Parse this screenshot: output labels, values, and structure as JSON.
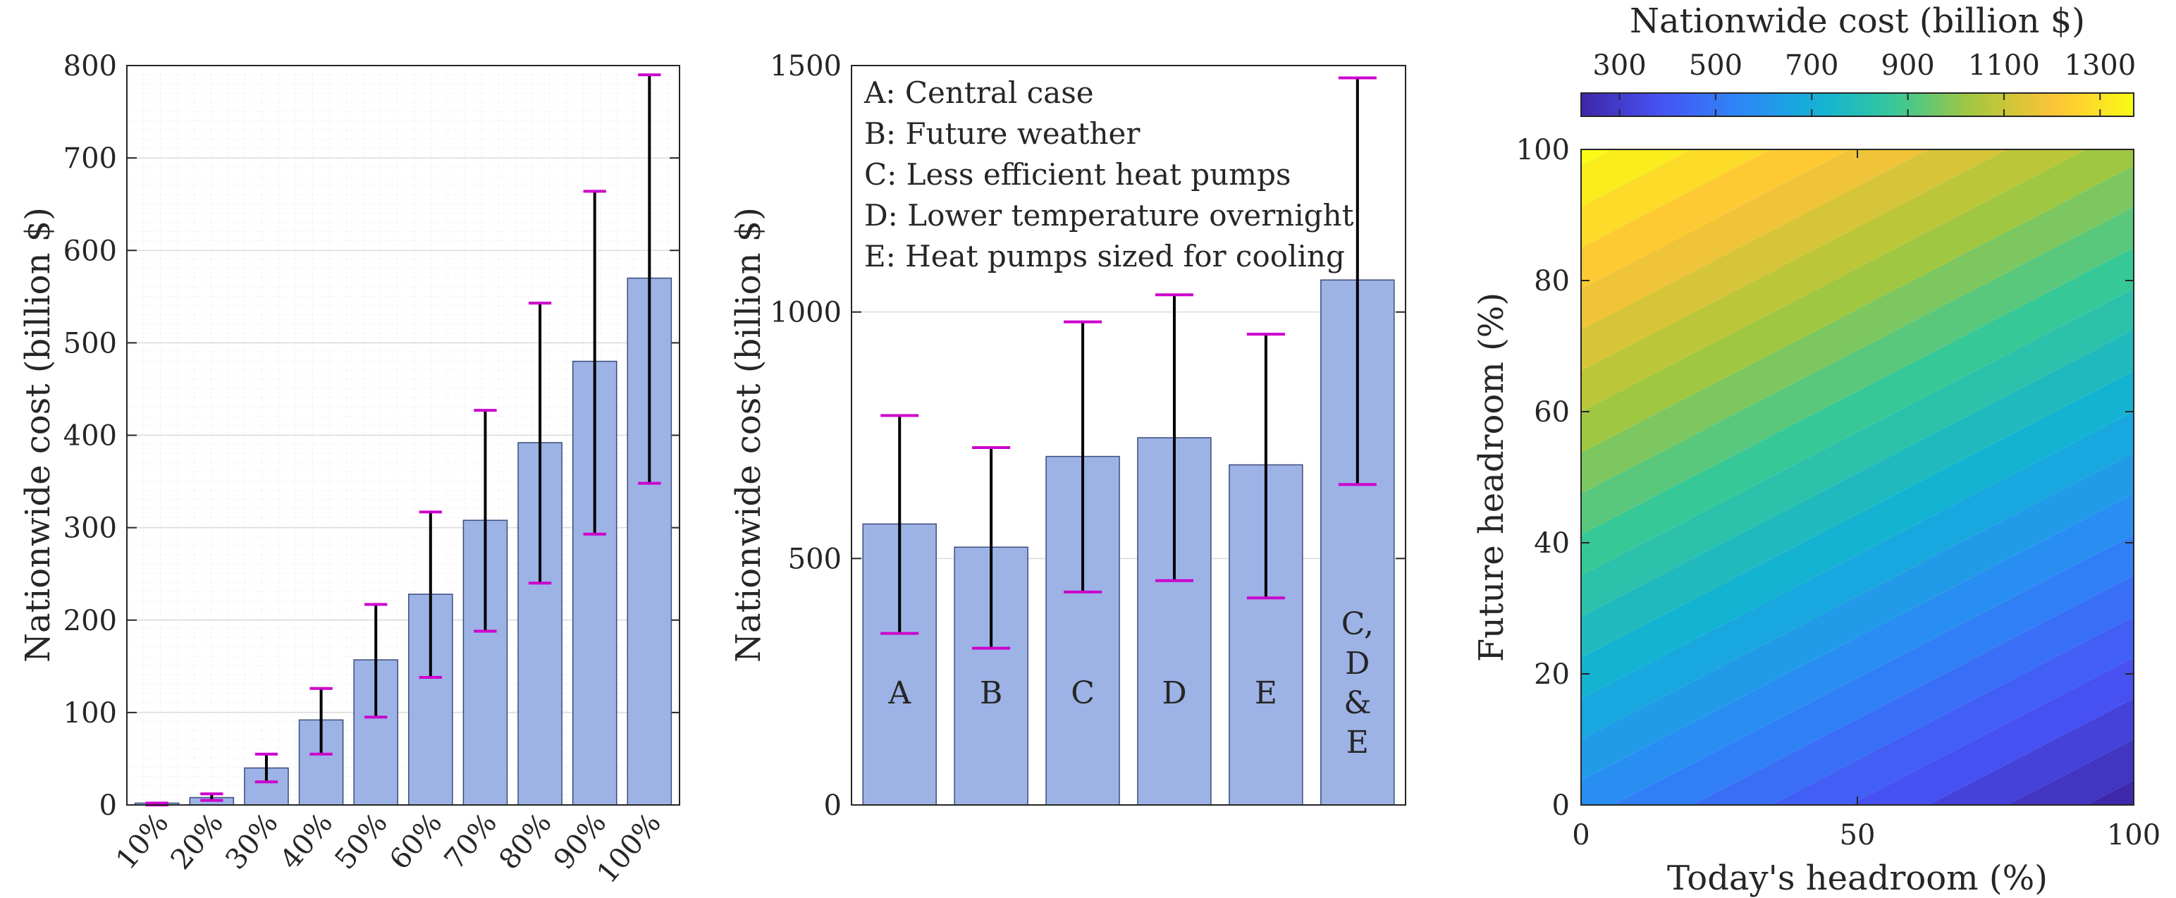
{
  "chart_data": [
    {
      "type": "bar",
      "categories": [
        "10%",
        "20%",
        "30%",
        "40%",
        "50%",
        "60%",
        "70%",
        "80%",
        "90%",
        "100%"
      ],
      "values": [
        2,
        8,
        40,
        92,
        157,
        228,
        308,
        392,
        480,
        570
      ],
      "error_low": [
        0,
        5,
        25,
        55,
        95,
        138,
        188,
        240,
        293,
        348
      ],
      "error_high": [
        2,
        12,
        55,
        126,
        217,
        317,
        427,
        543,
        664,
        790
      ],
      "xlabel": "",
      "ylabel": "Nationwide cost (billion $)",
      "ylim": [
        0,
        800
      ],
      "yticks": [
        0,
        100,
        200,
        300,
        400,
        500,
        600,
        700,
        800
      ],
      "grid": "on (major and minor)",
      "bar_color": "#9db3e6",
      "error_color": "#000000",
      "error_cap_color": "#cc00cc"
    },
    {
      "type": "bar",
      "categories": [
        "A",
        "B",
        "C",
        "D",
        "E",
        "C,\nD\n&\nE"
      ],
      "bar_labels": [
        [
          "A"
        ],
        [
          "B"
        ],
        [
          "C"
        ],
        [
          "D"
        ],
        [
          "E"
        ],
        [
          "C,",
          "D",
          "&",
          "E"
        ]
      ],
      "values": [
        570,
        523,
        707,
        745,
        690,
        1065
      ],
      "error_low": [
        348,
        318,
        432,
        455,
        420,
        650
      ],
      "error_high": [
        790,
        725,
        980,
        1035,
        955,
        1475
      ],
      "ylabel": "Nationwide cost (billion $)",
      "ylim": [
        0,
        1500
      ],
      "yticks": [
        0,
        500,
        1000,
        1500
      ],
      "grid": "on (major and minor)",
      "legend": [
        "A: Central case",
        "B: Future weather",
        "C: Less efficient heat pumps",
        "D: Lower temperature overnight",
        "E: Heat pumps sized for cooling"
      ],
      "legend_position": "top-left",
      "bar_color": "#9db3e6",
      "error_color": "#000000",
      "error_cap_color": "#cc00cc"
    },
    {
      "type": "heatmap",
      "subtype": "filled contour",
      "xlabel": "Today's headroom (%)",
      "ylabel": "Future headroom (%)",
      "xlim": [
        0,
        100
      ],
      "ylim": [
        0,
        100
      ],
      "xticks": [
        0,
        50,
        100
      ],
      "yticks": [
        0,
        20,
        40,
        60,
        80,
        100
      ],
      "colorbar_title": "Nationwide cost (billion $)",
      "colorbar_ticks": [
        300,
        500,
        700,
        900,
        1100,
        1300
      ],
      "colorbar_range": [
        220,
        1370
      ],
      "colorbar_position": "top",
      "colormap": "parula",
      "corner_values": {
        "x0_y0": 570,
        "x100_y0": 220,
        "x0_y100": 1370,
        "x100_y100": 830
      }
    }
  ]
}
